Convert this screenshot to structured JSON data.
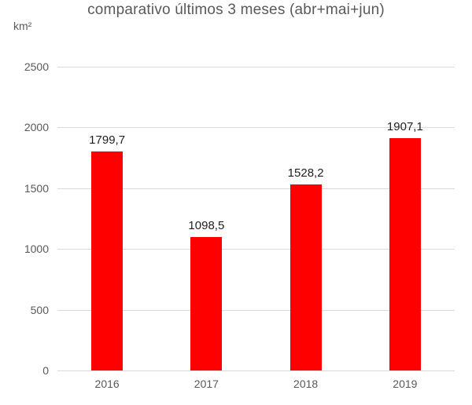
{
  "chart_data": {
    "type": "bar",
    "title": "comparativo últimos 3 meses (abr+mai+jun)",
    "unit_label": "km²",
    "xlabel": "",
    "ylabel": "km²",
    "categories": [
      "2016",
      "2017",
      "2018",
      "2019"
    ],
    "values": [
      1799.7,
      1098.5,
      1528.2,
      1907.1
    ],
    "value_labels": [
      "1799,7",
      "1098,5",
      "1528,2",
      "1907,1"
    ],
    "ylim": [
      0,
      2500
    ],
    "yticks": [
      0,
      500,
      1000,
      1500,
      2000,
      2500
    ],
    "grid": true,
    "legend": "none",
    "colors": {
      "bar": "#fe0000",
      "gridline": "#d9d9d9",
      "axis_text": "#595959",
      "title_text": "#595959",
      "data_label": "#1f1f1f",
      "background": "#ffffff"
    }
  }
}
